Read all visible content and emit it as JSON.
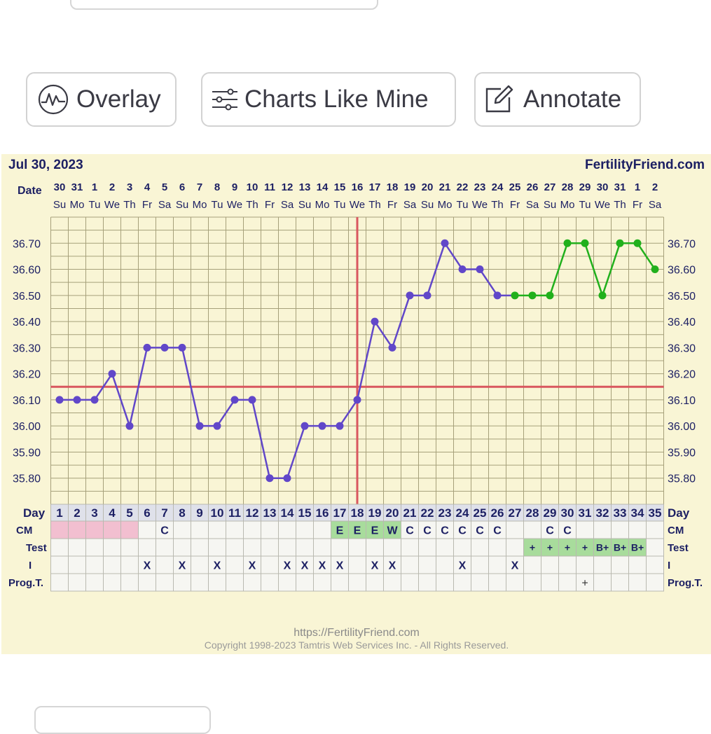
{
  "toolbar": {
    "overlay_label": "Overlay",
    "charts_like_mine_label": "Charts Like Mine",
    "annotate_label": "Annotate"
  },
  "colors": {
    "panel_bg": "#f9f5d5",
    "grid": "#a6a07a",
    "temp_line": "#6147c9",
    "current_line": "#21b01c",
    "coverline": "#d9575f",
    "ovulation_line": "#d9575f",
    "cm_pink": "#f2bfd0",
    "green_cell": "#a8dc9c",
    "day_row_bg": "#dfe1ea",
    "label_text": "#1c1f63"
  },
  "chart_data": {
    "type": "line",
    "header": {
      "date": "Jul 30, 2023",
      "brand": "FertilityFriend.com"
    },
    "date_row_label": "Date",
    "dates": [
      "30",
      "31",
      "1",
      "2",
      "3",
      "4",
      "5",
      "6",
      "7",
      "8",
      "9",
      "10",
      "11",
      "12",
      "13",
      "14",
      "15",
      "16",
      "17",
      "18",
      "19",
      "20",
      "21",
      "22",
      "23",
      "24",
      "25",
      "26",
      "27",
      "28",
      "29",
      "30",
      "31",
      "1",
      "2"
    ],
    "weekdays": [
      "Su",
      "Mo",
      "Tu",
      "We",
      "Th",
      "Fr",
      "Sa",
      "Su",
      "Mo",
      "Tu",
      "We",
      "Th",
      "Fr",
      "Sa",
      "Su",
      "Mo",
      "Tu",
      "We",
      "Th",
      "Fr",
      "Sa",
      "Su",
      "Mo",
      "Tu",
      "We",
      "Th",
      "Fr",
      "Sa",
      "Su",
      "Mo",
      "Tu",
      "We",
      "Th",
      "Fr",
      "Sa"
    ],
    "y_ticks": [
      "36.70",
      "36.60",
      "36.50",
      "36.40",
      "36.30",
      "36.20",
      "36.10",
      "36.00",
      "35.90",
      "35.80"
    ],
    "ylim": [
      35.7,
      36.8
    ],
    "grid": true,
    "series": [
      {
        "color": "#6147c9",
        "points": [
          [
            1,
            36.1
          ],
          [
            2,
            36.1
          ],
          [
            3,
            36.1
          ],
          [
            4,
            36.2
          ],
          [
            5,
            36.0
          ],
          [
            6,
            36.3
          ],
          [
            7,
            36.3
          ],
          [
            8,
            36.3
          ],
          [
            9,
            36.0
          ],
          [
            10,
            36.0
          ],
          [
            11,
            36.1
          ],
          [
            12,
            36.1
          ],
          [
            13,
            35.8
          ],
          [
            14,
            35.8
          ],
          [
            15,
            36.0
          ],
          [
            16,
            36.0
          ],
          [
            17,
            36.0
          ],
          [
            18,
            36.1
          ],
          [
            19,
            36.4
          ],
          [
            20,
            36.3
          ],
          [
            21,
            36.5
          ],
          [
            22,
            36.5
          ],
          [
            23,
            36.7
          ],
          [
            24,
            36.6
          ],
          [
            25,
            36.6
          ],
          [
            26,
            36.5
          ],
          [
            27,
            36.5
          ]
        ]
      },
      {
        "color": "#21b01c",
        "points": [
          [
            27,
            36.5
          ],
          [
            28,
            36.5
          ],
          [
            29,
            36.5
          ],
          [
            30,
            36.7
          ],
          [
            31,
            36.7
          ],
          [
            32,
            36.5
          ],
          [
            33,
            36.7
          ],
          [
            34,
            36.7
          ],
          [
            35,
            36.6
          ]
        ]
      }
    ],
    "coverline": 36.15,
    "ovulation_day": 18,
    "row_labels": {
      "day": "Day",
      "cm": "CM",
      "test": "Test",
      "i": "I",
      "prog": "Prog.T."
    },
    "days": [
      "1",
      "2",
      "3",
      "4",
      "5",
      "6",
      "7",
      "8",
      "9",
      "10",
      "11",
      "12",
      "13",
      "14",
      "15",
      "16",
      "17",
      "18",
      "19",
      "20",
      "21",
      "22",
      "23",
      "24",
      "25",
      "26",
      "27",
      "28",
      "29",
      "30",
      "31",
      "32",
      "33",
      "34",
      "35"
    ],
    "cm": [
      "",
      "",
      "",
      "",
      "",
      "",
      "C",
      "",
      "",
      "",
      "",
      "",
      "",
      "",
      "",
      "",
      "E",
      "E",
      "E",
      "W",
      "C",
      "C",
      "C",
      "C",
      "C",
      "C",
      "",
      "",
      "C",
      "C",
      "",
      "",
      "",
      "",
      ""
    ],
    "cm_pink_days": [
      1,
      2,
      3,
      4,
      5
    ],
    "test": [
      "",
      "",
      "",
      "",
      "",
      "",
      "",
      "",
      "",
      "",
      "",
      "",
      "",
      "",
      "",
      "",
      "",
      "",
      "",
      "",
      "",
      "",
      "",
      "",
      "",
      "",
      "",
      "+",
      "+",
      "+",
      "+",
      "B+",
      "B+",
      "B+",
      ""
    ],
    "intercourse": [
      "",
      "",
      "",
      "",
      "",
      "X",
      "",
      "X",
      "",
      "X",
      "",
      "X",
      "",
      "X",
      "X",
      "X",
      "X",
      "",
      "X",
      "X",
      "",
      "",
      "",
      "X",
      "",
      "",
      "X",
      "",
      "",
      "",
      "",
      "",
      "",
      "",
      ""
    ],
    "prog_test": [
      "",
      "",
      "",
      "",
      "",
      "",
      "",
      "",
      "",
      "",
      "",
      "",
      "",
      "",
      "",
      "",
      "",
      "",
      "",
      "",
      "",
      "",
      "",
      "",
      "",
      "",
      "",
      "",
      "",
      "",
      "+",
      "",
      "",
      "",
      ""
    ],
    "footer": {
      "url": "https://FertilityFriend.com",
      "copyright": "Copyright 1998-2023 Tamtris Web Services Inc. - All Rights Reserved."
    }
  }
}
